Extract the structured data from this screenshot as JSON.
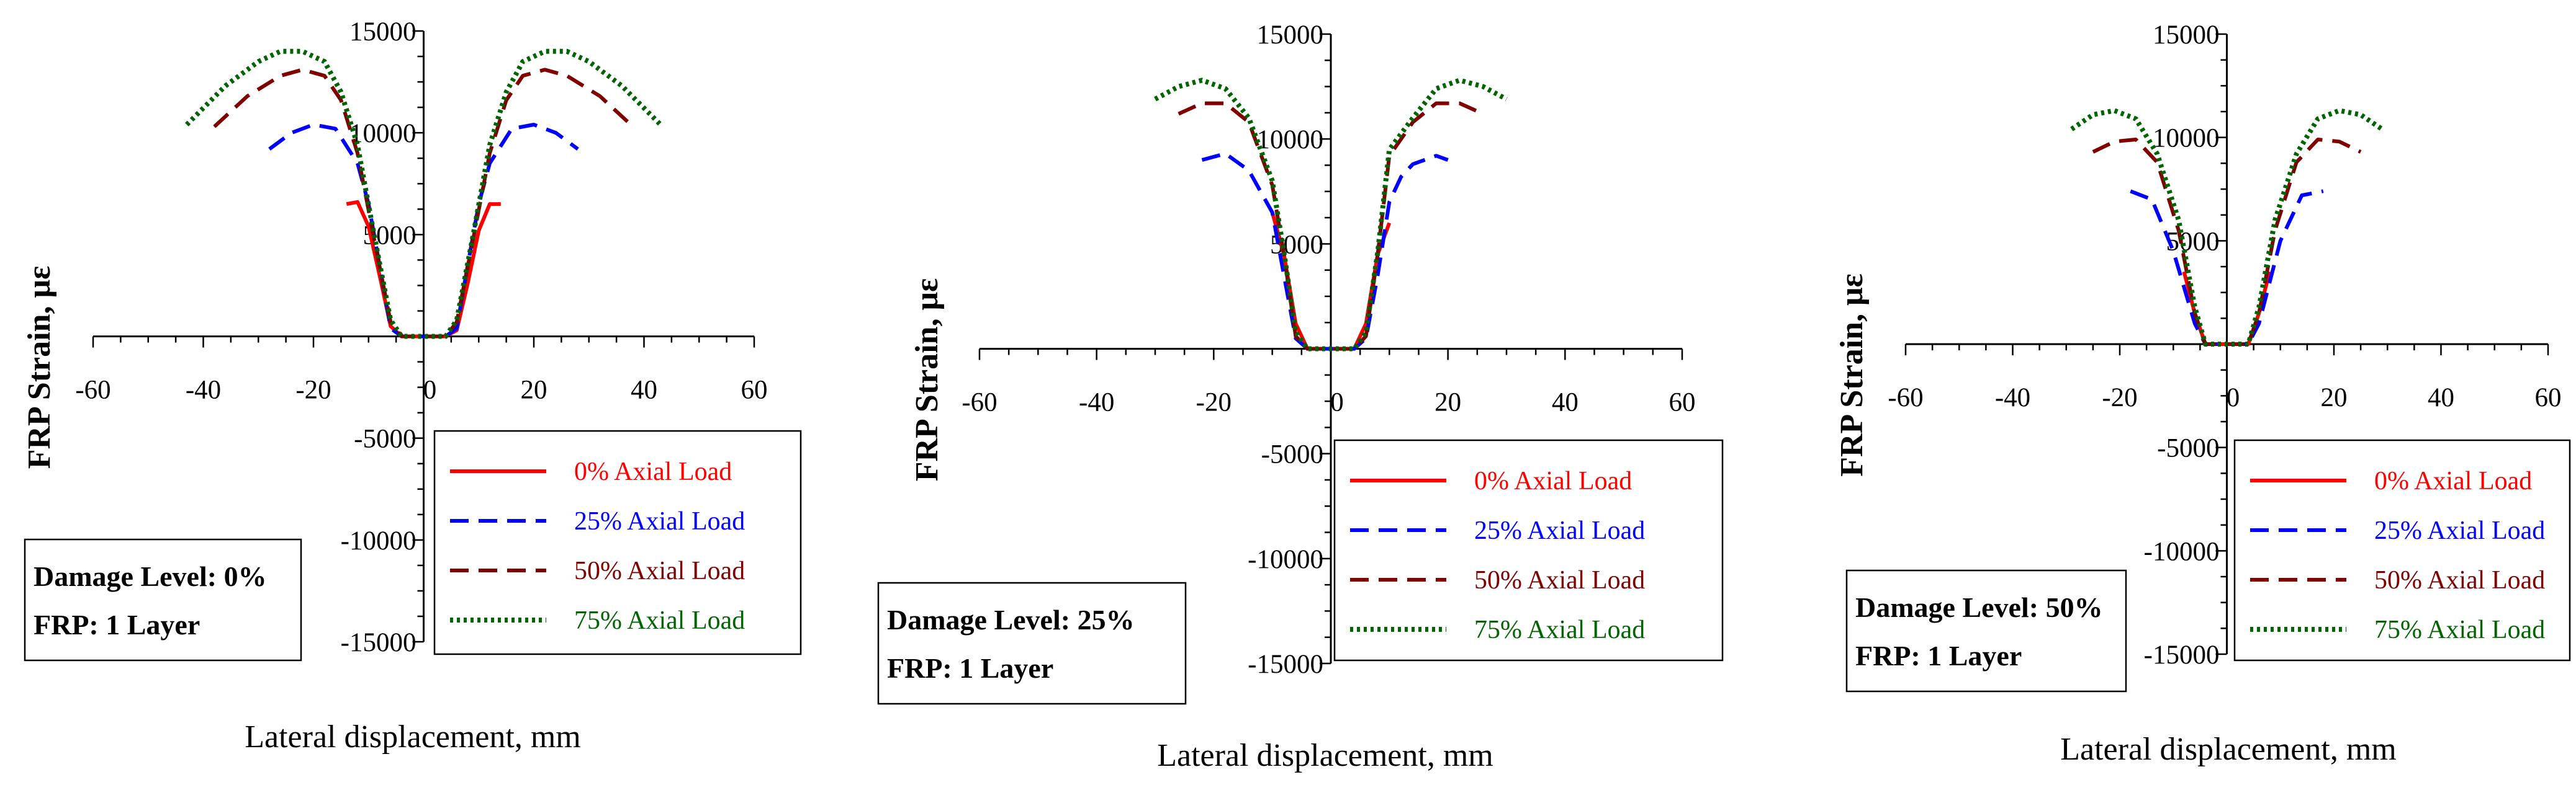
{
  "chart_data": [
    {
      "type": "line",
      "title": "",
      "xlabel": "Lateral displacement, mm",
      "ylabel": "FRP Strain, με",
      "xlim": [
        -60,
        60
      ],
      "ylim": [
        -15000,
        15000
      ],
      "xticks": [
        -60,
        -40,
        -20,
        0,
        20,
        40,
        60
      ],
      "yticks": [
        -15000,
        -10000,
        -5000,
        5000,
        10000,
        15000
      ],
      "annotation": [
        "Damage Level: 0%",
        "FRP: 1 Layer"
      ],
      "series": [
        {
          "name": "0% Axial Load",
          "color": "#ff0000",
          "dash": "solid",
          "x": [
            -14,
            -12,
            -10,
            -8,
            -6,
            -4,
            -2,
            0,
            2,
            4,
            6,
            8,
            10,
            12,
            14
          ],
          "y": [
            6500,
            6600,
            5400,
            3000,
            500,
            0,
            0,
            0,
            0,
            0,
            300,
            2600,
            5200,
            6500,
            6500
          ]
        },
        {
          "name": "25% Axial Load",
          "color": "#0000ff",
          "dash": "long",
          "x": [
            -28,
            -24,
            -20,
            -16,
            -12,
            -10,
            -8,
            -6,
            -4,
            -2,
            0,
            2,
            4,
            6,
            8,
            10,
            12,
            16,
            20,
            24,
            28
          ],
          "y": [
            9200,
            10000,
            10400,
            10200,
            8500,
            6500,
            3500,
            400,
            0,
            0,
            0,
            0,
            0,
            400,
            3500,
            6500,
            8500,
            10200,
            10400,
            10000,
            9200
          ]
        },
        {
          "name": "50% Axial Load",
          "color": "#800000",
          "dash": "long",
          "x": [
            -38,
            -32,
            -26,
            -22,
            -18,
            -15,
            -12,
            -9,
            -6,
            -4,
            -2,
            0,
            2,
            4,
            6,
            9,
            12,
            15,
            18,
            22,
            26,
            32,
            38
          ],
          "y": [
            10300,
            11800,
            12800,
            13100,
            12800,
            11600,
            9000,
            4800,
            700,
            0,
            0,
            0,
            0,
            0,
            700,
            4800,
            9000,
            11600,
            12800,
            13100,
            12800,
            11800,
            10300
          ]
        },
        {
          "name": "75% Axial Load",
          "color": "#006400",
          "dash": "dot",
          "x": [
            -43,
            -36,
            -30,
            -26,
            -22,
            -18,
            -15,
            -12,
            -9,
            -6,
            -4,
            -2,
            0,
            2,
            4,
            6,
            9,
            12,
            15,
            18,
            22,
            26,
            30,
            36,
            43
          ],
          "y": [
            10400,
            12300,
            13500,
            14000,
            14000,
            13500,
            12000,
            9400,
            5000,
            800,
            0,
            0,
            0,
            0,
            0,
            800,
            5000,
            9400,
            12000,
            13500,
            14000,
            14000,
            13500,
            12300,
            10400
          ]
        }
      ]
    },
    {
      "type": "line",
      "title": "",
      "xlabel": "Lateral displacement, mm",
      "ylabel": "FRP Strain, με",
      "xlim": [
        -60,
        60
      ],
      "ylim": [
        -15000,
        15000
      ],
      "xticks": [
        -60,
        -40,
        -20,
        0,
        20,
        40,
        60
      ],
      "yticks": [
        -15000,
        -10000,
        -5000,
        5000,
        10000,
        15000
      ],
      "annotation": [
        "Damage Level: 25%",
        "FRP: 1 Layer"
      ],
      "series": [
        {
          "name": "0% Axial Load",
          "color": "#ff0000",
          "dash": "solid",
          "x": [
            -10,
            -8,
            -6,
            -4,
            -2,
            0,
            2,
            4,
            6,
            8,
            10
          ],
          "y": [
            6500,
            4500,
            1200,
            0,
            0,
            0,
            0,
            0,
            1200,
            4500,
            6000
          ]
        },
        {
          "name": "25% Axial Load",
          "color": "#0000ff",
          "dash": "long",
          "x": [
            -22,
            -18,
            -14,
            -10,
            -8,
            -6,
            -4,
            -2,
            0,
            2,
            4,
            6,
            8,
            10,
            12,
            14,
            18,
            20
          ],
          "y": [
            9000,
            9300,
            8500,
            6500,
            3500,
            500,
            0,
            0,
            0,
            0,
            0,
            500,
            3500,
            7000,
            8200,
            8800,
            9200,
            9000
          ]
        },
        {
          "name": "50% Axial Load",
          "color": "#800000",
          "dash": "long",
          "x": [
            -26,
            -22,
            -18,
            -14,
            -10,
            -8,
            -6,
            -4,
            -2,
            0,
            2,
            4,
            6,
            8,
            10,
            14,
            18,
            22,
            26
          ],
          "y": [
            11200,
            11700,
            11700,
            10800,
            7800,
            4500,
            600,
            0,
            0,
            0,
            0,
            0,
            600,
            4500,
            9200,
            10800,
            11700,
            11700,
            11200
          ]
        },
        {
          "name": "75% Axial Load",
          "color": "#006400",
          "dash": "dot",
          "x": [
            -30,
            -26,
            -22,
            -18,
            -14,
            -10,
            -8,
            -6,
            -4,
            -2,
            0,
            2,
            4,
            6,
            8,
            10,
            14,
            18,
            22,
            26,
            30
          ],
          "y": [
            11900,
            12500,
            12800,
            12400,
            11000,
            8000,
            4600,
            800,
            0,
            0,
            0,
            0,
            0,
            800,
            4600,
            9500,
            11000,
            12400,
            12800,
            12500,
            11900
          ]
        }
      ]
    },
    {
      "type": "line",
      "title": "",
      "xlabel": "Lateral displacement, mm",
      "ylabel": "FRP Strain, με",
      "xlim": [
        -60,
        60
      ],
      "ylim": [
        -15000,
        15000
      ],
      "xticks": [
        -60,
        -40,
        -20,
        0,
        20,
        40,
        60
      ],
      "yticks": [
        -15000,
        -10000,
        -5000,
        5000,
        10000,
        15000
      ],
      "annotation": [
        "Damage Level: 50%",
        "FRP: 1 Layer"
      ],
      "series": [
        {
          "name": "0% Axial Load",
          "color": "#ff0000",
          "dash": "solid",
          "x": [
            -8,
            -6,
            -4,
            -2,
            0,
            2,
            4,
            6,
            8
          ],
          "y": [
            3500,
            1500,
            0,
            0,
            0,
            0,
            0,
            1500,
            3500
          ]
        },
        {
          "name": "25% Axial Load",
          "color": "#0000ff",
          "dash": "long",
          "x": [
            -18,
            -14,
            -10,
            -6,
            -4,
            -2,
            0,
            2,
            4,
            6,
            10,
            14,
            18
          ],
          "y": [
            7400,
            7000,
            4500,
            1000,
            0,
            0,
            0,
            0,
            0,
            1000,
            5000,
            7200,
            7400
          ]
        },
        {
          "name": "50% Axial Load",
          "color": "#800000",
          "dash": "long",
          "x": [
            -25,
            -21,
            -17,
            -13,
            -9,
            -6,
            -4,
            -2,
            0,
            2,
            4,
            6,
            9,
            13,
            17,
            21,
            25
          ],
          "y": [
            9300,
            9800,
            9900,
            8800,
            5500,
            1500,
            0,
            0,
            0,
            0,
            0,
            1500,
            5500,
            8800,
            9900,
            9800,
            9300
          ]
        },
        {
          "name": "75% Axial Load",
          "color": "#006400",
          "dash": "dot",
          "x": [
            -29,
            -25,
            -21,
            -17,
            -13,
            -9,
            -6,
            -4,
            -2,
            0,
            2,
            4,
            6,
            9,
            13,
            17,
            21,
            25,
            29
          ],
          "y": [
            10400,
            11100,
            11300,
            10900,
            9200,
            6000,
            1800,
            0,
            0,
            0,
            0,
            0,
            1800,
            6000,
            9200,
            10900,
            11300,
            11100,
            10400
          ]
        }
      ]
    }
  ]
}
